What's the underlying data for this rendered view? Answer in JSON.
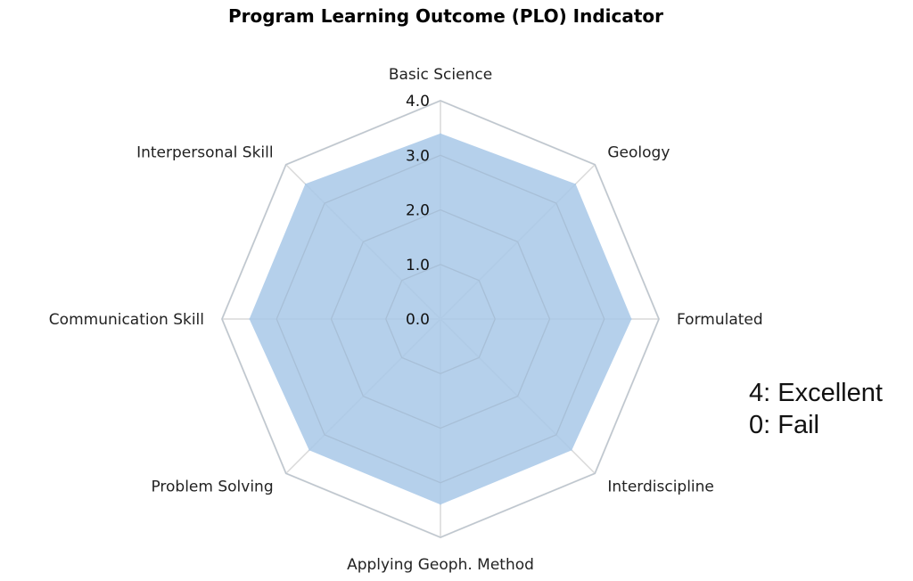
{
  "chart_data": {
    "type": "radar",
    "title": "Program Learning Outcome (PLO) Indicator",
    "categories": [
      "Basic Science",
      "Geology",
      "Formulated",
      "Interdiscipline",
      "Applying Geoph. Method",
      "Problem Solving",
      "Communication Skill",
      "Interpersonal Skill"
    ],
    "values": [
      3.4,
      3.5,
      3.5,
      3.4,
      3.4,
      3.4,
      3.5,
      3.5
    ],
    "r_ticks": [
      "0.0",
      "1.0",
      "2.0",
      "3.0",
      "4.0"
    ],
    "r_range": [
      0,
      4
    ],
    "grid": true,
    "fill_color": "#a8c8e8",
    "grid_color": "#d9d9d9"
  },
  "legend_note": {
    "line1": "4: Excellent",
    "line2": "0: Fail"
  }
}
